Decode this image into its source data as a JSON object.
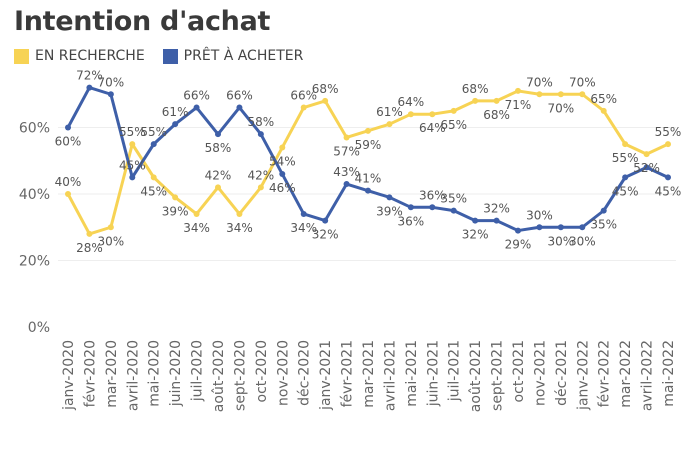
{
  "chart_data": {
    "type": "line",
    "title": "Intention d'achat",
    "ylabel": "",
    "xlabel": "",
    "ylim": [
      0,
      80
    ],
    "yticks": [
      0,
      20,
      40,
      60
    ],
    "ytick_labels": [
      "0%",
      "20%",
      "40%",
      "60%"
    ],
    "grid": true,
    "legend_position": "top-left",
    "categories": [
      "janv-2020",
      "févr-2020",
      "mar-2020",
      "avril-2020",
      "mai-2020",
      "juin-2020",
      "juil-2020",
      "août-2020",
      "sept-2020",
      "oct-2020",
      "nov-2020",
      "déc-2020",
      "janv-2021",
      "févr-2021",
      "mar-2021",
      "avril-2021",
      "mai-2021",
      "juin-2021",
      "juil-2021",
      "août-2021",
      "sept-2021",
      "oct-2021",
      "nov-2021",
      "déc-2021",
      "janv-2022",
      "févr-2022",
      "mar-2022",
      "avril-2022",
      "mai-2022"
    ],
    "series": [
      {
        "name": "EN RECHERCHE",
        "color": "#F7D354",
        "values": [
          40,
          28,
          30,
          55,
          45,
          39,
          34,
          42,
          34,
          42,
          54,
          66,
          68,
          57,
          59,
          61,
          64,
          64,
          65,
          68,
          68,
          71,
          70,
          70,
          70,
          65,
          55,
          52,
          55
        ],
        "label_positions": [
          "above",
          "below",
          "below",
          "above",
          "below",
          "below",
          "below",
          "above",
          "below",
          "above",
          "below",
          "above",
          "above",
          "below",
          "below",
          "above",
          "above",
          "below",
          "below",
          "above",
          "below",
          "below",
          "above",
          "below",
          "above",
          "above",
          "below",
          "below",
          "above"
        ],
        "label_text": [
          "40%",
          "28%",
          "30%",
          "55%",
          "45%",
          "39%",
          "34%",
          "42%",
          "34%",
          "42%",
          "54%",
          "66%",
          "68%",
          "57%",
          "59%",
          "61%",
          "64%",
          "64%",
          "65%",
          "68%",
          "68%",
          "71%",
          "70%",
          "70%",
          "70%",
          "65%",
          "55%",
          "52%",
          "55%"
        ]
      },
      {
        "name": "PRÊT À ACHETER",
        "color": "#3E5FA8",
        "values": [
          60,
          72,
          70,
          45,
          55,
          61,
          66,
          58,
          66,
          58,
          46,
          34,
          32,
          43,
          41,
          39,
          36,
          36,
          35,
          32,
          32,
          29,
          30,
          30,
          30,
          35,
          45,
          48,
          45
        ],
        "label_positions": [
          "below",
          "above",
          "above",
          "above",
          "above",
          "above",
          "above",
          "below",
          "above",
          "above",
          "below",
          "below",
          "below",
          "above",
          "above",
          "below",
          "below",
          "above",
          "above",
          "below",
          "above",
          "below",
          "above",
          "below",
          "below",
          "below",
          "below",
          "none",
          "below"
        ],
        "label_text": [
          "60%",
          "72%",
          "70%",
          "45%",
          "55%",
          "61%",
          "66%",
          "58%",
          "66%",
          "58%",
          "46%",
          "34%",
          "32%",
          "43%",
          "41%",
          "39%",
          "36%",
          "36%",
          "35%",
          "32%",
          "32%",
          "29%",
          "30%",
          "30%",
          "30%",
          "35%",
          "45%",
          "",
          "45%"
        ]
      }
    ]
  }
}
